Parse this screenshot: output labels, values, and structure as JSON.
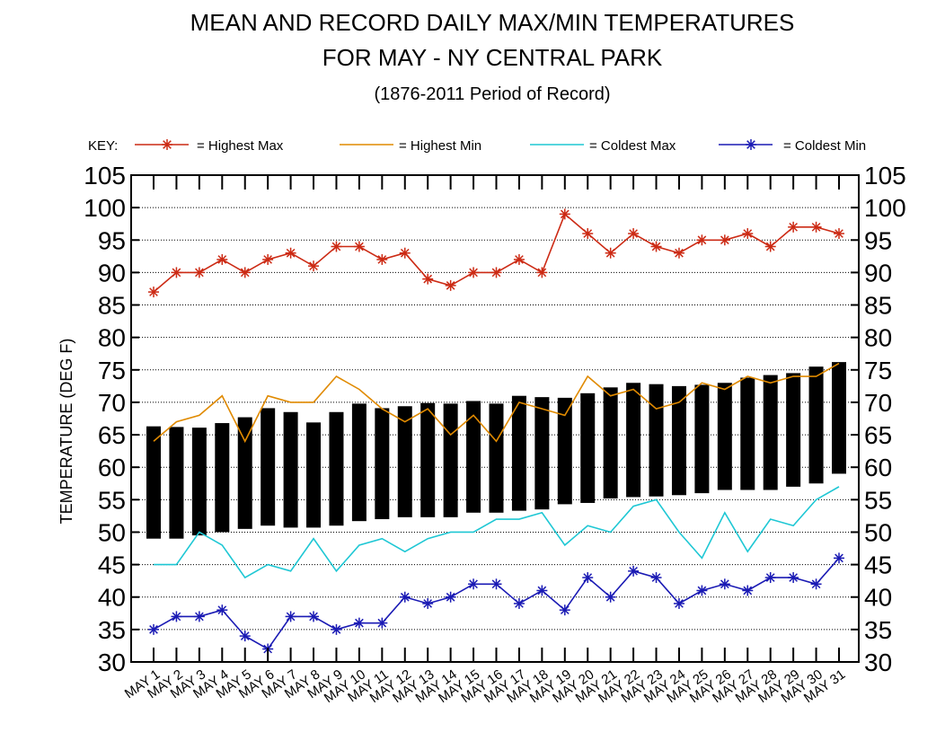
{
  "chart_data": {
    "type": "bar",
    "title": "MEAN AND RECORD DAILY MAX/MIN TEMPERATURES",
    "title2": "FOR MAY - NY CENTRAL PARK",
    "subtitle": "(1876-2011 Period of Record)",
    "ylabel": "TEMPERATURE (DEG F)",
    "xlabel": "",
    "ylim": [
      30,
      105
    ],
    "ytick_step": 5,
    "grid": true,
    "key_label": "KEY:",
    "categories": [
      "MAY 1",
      "MAY 2",
      "MAY 3",
      "MAY 4",
      "MAY 5",
      "MAY 6",
      "MAY 7",
      "MAY 8",
      "MAY 9",
      "MAY 10",
      "MAY 11",
      "MAY 12",
      "MAY 13",
      "MAY 14",
      "MAY 15",
      "MAY 16",
      "MAY 17",
      "MAY 18",
      "MAY 19",
      "MAY 20",
      "MAY 21",
      "MAY 22",
      "MAY 23",
      "MAY 24",
      "MAY 25",
      "MAY 26",
      "MAY 27",
      "MAY 28",
      "MAY 29",
      "MAY 30",
      "MAY 31"
    ],
    "mean_range": {
      "low": [
        49,
        49,
        49.5,
        50,
        50.5,
        51,
        50.7,
        50.7,
        51,
        51.7,
        52,
        52.3,
        52.3,
        52.3,
        53,
        53,
        53.3,
        53.5,
        54.3,
        54.5,
        55.2,
        55.4,
        55.5,
        55.7,
        56,
        56.5,
        56.5,
        56.5,
        57,
        57.5,
        59
      ],
      "high": [
        66.3,
        66.2,
        66.1,
        66.8,
        67.7,
        69.1,
        68.5,
        66.9,
        68.5,
        69.8,
        69.1,
        69.4,
        69.9,
        69.8,
        70.2,
        69.8,
        71,
        70.8,
        70.7,
        71.4,
        72.3,
        73,
        72.8,
        72.5,
        72.7,
        73,
        73.8,
        74.2,
        74.5,
        75.5,
        76.2
      ]
    },
    "series": [
      {
        "name": "= Highest Max",
        "color": "#cc2a14",
        "marker": "asterisk",
        "values": [
          87,
          90,
          90,
          92,
          90,
          92,
          93,
          91,
          94,
          94,
          92,
          93,
          89,
          88,
          90,
          90,
          92,
          90,
          99,
          96,
          93,
          96,
          94,
          93,
          95,
          95,
          96,
          94,
          97,
          97,
          96
        ]
      },
      {
        "name": "= Highest Min",
        "color": "#e08a00",
        "marker": "none",
        "values": [
          64,
          67,
          68,
          71,
          64,
          71,
          70,
          70,
          74,
          72,
          69,
          67,
          69,
          65,
          68,
          64,
          70,
          69,
          68,
          74,
          71,
          72,
          69,
          70,
          73,
          72,
          74,
          73,
          74,
          74,
          76
        ]
      },
      {
        "name": "= Coldest Max",
        "color": "#1ec7d4",
        "marker": "none",
        "values": [
          45,
          45,
          50,
          48,
          43,
          45,
          44,
          49,
          44,
          48,
          49,
          47,
          49,
          50,
          50,
          52,
          52,
          53,
          48,
          51,
          50,
          54,
          55,
          50,
          46,
          53,
          47,
          52,
          51,
          55,
          57
        ]
      },
      {
        "name": "= Coldest Min",
        "color": "#1a1ab4",
        "marker": "asterisk",
        "values": [
          35,
          37,
          37,
          38,
          34,
          32,
          37,
          37,
          35,
          36,
          36,
          40,
          39,
          40,
          42,
          42,
          39,
          41,
          38,
          43,
          40,
          44,
          43,
          39,
          41,
          42,
          41,
          43,
          43,
          42,
          46
        ]
      }
    ]
  }
}
